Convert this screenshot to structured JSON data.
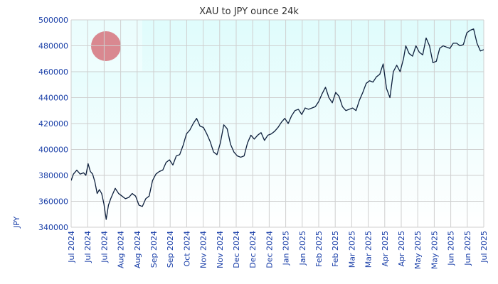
{
  "chart_data": {
    "type": "line",
    "title": "XAU to JPY ounce 24k",
    "xlabel": "",
    "ylabel": "JPY",
    "ylim": [
      340000,
      500000
    ],
    "yticks": [
      340000,
      360000,
      380000,
      400000,
      420000,
      440000,
      460000,
      480000,
      500000
    ],
    "ytick_labels": [
      "340000",
      "360000",
      "380000",
      "400000",
      "420000",
      "440000",
      "460000",
      "480000",
      "500000"
    ],
    "xtick_labels": [
      "Jul 2024",
      "Jul 2024",
      "Jul 2024",
      "Aug 2024",
      "Aug 2024",
      "Sep 2024",
      "Sep 2024",
      "Oct 2024",
      "Nov 2024",
      "Nov 2024",
      "Dec 2024",
      "Dec 2024",
      "Dec 2024",
      "Jan 2025",
      "Jan 2025",
      "Feb 2025",
      "Feb 2025",
      "Mar 2025",
      "Mar 2025",
      "Apr 2025",
      "Apr 2025",
      "May 2025",
      "May 2025",
      "Jun 2025",
      "Jun 2025",
      "Jul 2025"
    ],
    "grid": true,
    "colors": {
      "line": "#0d1f3c",
      "bg_top": "#dffcfc",
      "bg_bottom": "#ffffff",
      "grid": "#cfcfcf",
      "marker": "#d98890",
      "tick": "#1a3fa8"
    },
    "series": [
      {
        "x": [
          "2024-07-01",
          "2024-07-03",
          "2024-07-06",
          "2024-07-09",
          "2024-07-12",
          "2024-07-14",
          "2024-07-16",
          "2024-07-18",
          "2024-07-20",
          "2024-07-22",
          "2024-07-24",
          "2024-07-26",
          "2024-07-28",
          "2024-07-30",
          "2024-08-01",
          "2024-08-03",
          "2024-08-05",
          "2024-08-07",
          "2024-08-09",
          "2024-08-12",
          "2024-08-15",
          "2024-08-18",
          "2024-08-21",
          "2024-08-24",
          "2024-08-27",
          "2024-08-30",
          "2024-09-02",
          "2024-09-05",
          "2024-09-08",
          "2024-09-11",
          "2024-09-14",
          "2024-09-17",
          "2024-09-20",
          "2024-09-23",
          "2024-09-26",
          "2024-09-29",
          "2024-10-02",
          "2024-10-05",
          "2024-10-08",
          "2024-10-11",
          "2024-10-14",
          "2024-10-17",
          "2024-10-20",
          "2024-10-23",
          "2024-10-26",
          "2024-10-29",
          "2024-11-01",
          "2024-11-04",
          "2024-11-07",
          "2024-11-10",
          "2024-11-13",
          "2024-11-16",
          "2024-11-19",
          "2024-11-22",
          "2024-11-25",
          "2024-11-28",
          "2024-12-01",
          "2024-12-04",
          "2024-12-07",
          "2024-12-10",
          "2024-12-13",
          "2024-12-16",
          "2024-12-19",
          "2024-12-22",
          "2024-12-25",
          "2024-12-28",
          "2024-12-31",
          "2025-01-03",
          "2025-01-06",
          "2025-01-09",
          "2025-01-12",
          "2025-01-15",
          "2025-01-18",
          "2025-01-21",
          "2025-01-24",
          "2025-01-27",
          "2025-01-30",
          "2025-02-02",
          "2025-02-05",
          "2025-02-08",
          "2025-02-11",
          "2025-02-14",
          "2025-02-17",
          "2025-02-20",
          "2025-02-23",
          "2025-02-26",
          "2025-03-01",
          "2025-03-04",
          "2025-03-07",
          "2025-03-10",
          "2025-03-13",
          "2025-03-16",
          "2025-03-19",
          "2025-03-22",
          "2025-03-25",
          "2025-03-28",
          "2025-03-31",
          "2025-04-03",
          "2025-04-06",
          "2025-04-09",
          "2025-04-12",
          "2025-04-15",
          "2025-04-18",
          "2025-04-21",
          "2025-04-23",
          "2025-04-26",
          "2025-04-29",
          "2025-05-02",
          "2025-05-05",
          "2025-05-08",
          "2025-05-11",
          "2025-05-14",
          "2025-05-17",
          "2025-05-20",
          "2025-05-23",
          "2025-05-26",
          "2025-05-29",
          "2025-06-01",
          "2025-06-04",
          "2025-06-07",
          "2025-06-10",
          "2025-06-13",
          "2025-06-16",
          "2025-06-19",
          "2025-06-22",
          "2025-06-25",
          "2025-06-28",
          "2025-07-01"
        ],
        "values": [
          376000,
          381000,
          384000,
          381000,
          382000,
          380000,
          389000,
          383000,
          381000,
          375000,
          366000,
          369000,
          366000,
          358000,
          346000,
          357000,
          362000,
          366000,
          370000,
          366000,
          364000,
          362000,
          363000,
          366000,
          364000,
          357000,
          356000,
          362000,
          364000,
          376000,
          381000,
          383000,
          384000,
          390000,
          392000,
          388000,
          395000,
          396000,
          403000,
          412000,
          415000,
          420000,
          424000,
          418000,
          417000,
          412000,
          406000,
          398000,
          396000,
          405000,
          419000,
          416000,
          404000,
          398000,
          395000,
          394000,
          395000,
          405000,
          411000,
          408000,
          411000,
          413000,
          407000,
          411000,
          412000,
          414000,
          417000,
          421000,
          424000,
          420000,
          426000,
          430000,
          431000,
          427000,
          432000,
          431000,
          432000,
          433000,
          437000,
          443000,
          448000,
          440000,
          436000,
          444000,
          441000,
          433000,
          430000,
          431000,
          432000,
          430000,
          438000,
          444000,
          451000,
          453000,
          452000,
          456000,
          458000,
          466000,
          447000,
          440000,
          460000,
          465000,
          460000,
          470000,
          480000,
          474000,
          472000,
          480000,
          475000,
          473000,
          486000,
          480000,
          467000,
          468000,
          478000,
          480000,
          479000,
          478000,
          482000,
          482000,
          480000,
          481000,
          490000,
          492000,
          493000,
          482000,
          476000,
          477000
        ]
      }
    ]
  }
}
